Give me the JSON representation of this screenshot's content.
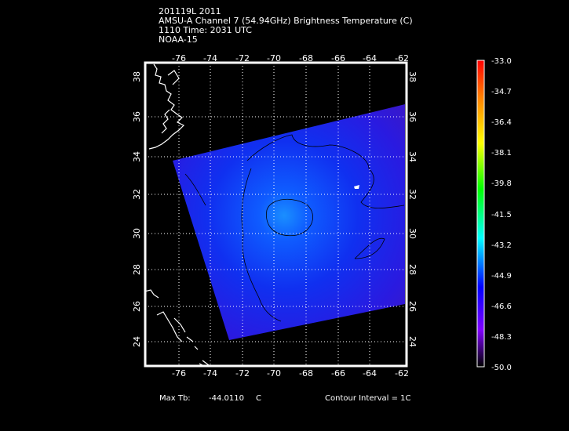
{
  "header": {
    "line1": "201119L 2011",
    "line2": "AMSU-A Channel 7 (54.94GHz) Brightness Temperature (C)",
    "line3": "1110 Time: 2031 UTC",
    "line4": "NOAA-15"
  },
  "map": {
    "lon_labels": [
      "-76",
      "-74",
      "-72",
      "-70",
      "-68",
      "-66",
      "-64",
      "-62"
    ],
    "lat_labels": [
      "38",
      "36",
      "34",
      "32",
      "30",
      "28",
      "26",
      "24"
    ],
    "colors": {
      "frame": "#ffffff",
      "grid": "#ffffff",
      "coast": "#ffffff",
      "contour": "#000000"
    }
  },
  "colorbar": {
    "labels": [
      "-33.0",
      "-34.7",
      "-36.4",
      "-38.1",
      "-39.8",
      "-41.5",
      "-43.2",
      "-44.9",
      "-46.6",
      "-48.3",
      "-50.0"
    ],
    "colors_top_to_bottom": [
      "#ff0000",
      "#ff8000",
      "#ffff00",
      "#00ff00",
      "#00ffff",
      "#0000ff",
      "#8000ff",
      "#000000"
    ]
  },
  "footer": {
    "max_tb_label": "Max Tb:",
    "max_tb_value": "-44.0110",
    "max_tb_unit": "C",
    "contour_interval": "Contour Interval = 1C"
  }
}
